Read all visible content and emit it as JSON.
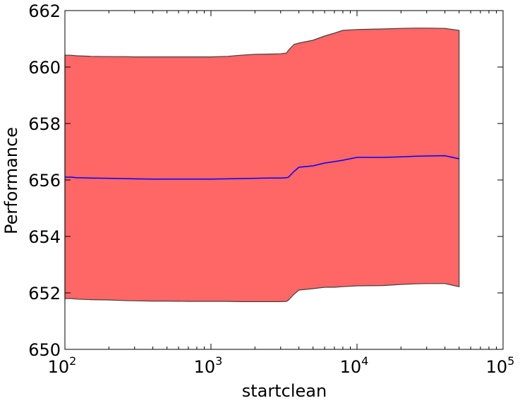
{
  "chart_data": {
    "type": "area",
    "xlabel": "startclean",
    "ylabel": "Performance",
    "xscale": "log",
    "xlim": [
      100,
      100000
    ],
    "ylim": [
      650,
      662
    ],
    "grid": false,
    "legend": "none",
    "x_ticks": [
      {
        "base": "10",
        "exp": "2"
      },
      {
        "base": "10",
        "exp": "3"
      },
      {
        "base": "10",
        "exp": "4"
      },
      {
        "base": "10",
        "exp": "5"
      }
    ],
    "y_ticks": [
      "650",
      "652",
      "654",
      "656",
      "658",
      "660",
      "662"
    ],
    "colors": {
      "band": "#ff6666",
      "band_edge": "#404040",
      "mean_line": "#0000ff"
    },
    "series": [
      {
        "x": [
          100,
          110,
          120,
          150,
          200,
          250,
          300,
          400,
          500,
          700,
          1000,
          1300,
          1600,
          2000,
          2500,
          3000,
          3300,
          3400,
          3700,
          4000,
          5000,
          6000,
          7000,
          8000,
          10000,
          15000,
          20000,
          25000,
          30000,
          40000,
          50000
        ],
        "mean": [
          656.1,
          656.1,
          656.08,
          656.07,
          656.06,
          656.05,
          656.04,
          656.03,
          656.03,
          656.03,
          656.03,
          656.04,
          656.05,
          656.06,
          656.07,
          656.07,
          656.08,
          656.1,
          656.3,
          656.45,
          656.5,
          656.6,
          656.65,
          656.7,
          656.8,
          656.8,
          656.82,
          656.84,
          656.85,
          656.86,
          656.75
        ],
        "lower": [
          651.8,
          651.8,
          651.78,
          651.76,
          651.75,
          651.73,
          651.72,
          651.71,
          651.71,
          651.7,
          651.7,
          651.7,
          651.69,
          651.69,
          651.69,
          651.69,
          651.7,
          651.75,
          651.95,
          652.1,
          652.15,
          652.2,
          652.2,
          652.22,
          652.25,
          652.26,
          652.3,
          652.32,
          652.33,
          652.33,
          652.22
        ],
        "upper": [
          660.42,
          660.42,
          660.4,
          660.38,
          660.37,
          660.37,
          660.36,
          660.36,
          660.36,
          660.36,
          660.36,
          660.38,
          660.42,
          660.45,
          660.46,
          660.47,
          660.5,
          660.6,
          660.8,
          660.85,
          660.95,
          661.1,
          661.2,
          661.3,
          661.33,
          661.35,
          661.37,
          661.38,
          661.38,
          661.37,
          661.3
        ]
      }
    ]
  }
}
